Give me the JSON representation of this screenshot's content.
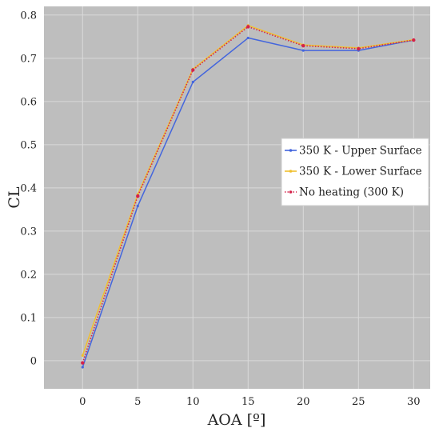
{
  "chart_data": {
    "type": "line",
    "xlabel": "AOA [º]",
    "ylabel": "CL",
    "x": [
      0,
      5,
      10,
      15,
      20,
      25,
      30
    ],
    "xlim": [
      -3.5,
      31.5
    ],
    "ylim": [
      -0.065,
      0.82
    ],
    "xticks": [
      0,
      5,
      10,
      15,
      20,
      25,
      30
    ],
    "yticks": [
      0,
      0.1,
      0.2,
      0.3,
      0.4,
      0.5,
      0.6,
      0.7,
      0.8
    ],
    "grid": true,
    "legend_position": "center-right",
    "plot_background": "#bebebe",
    "grid_color": "#d9d9d9",
    "series": [
      {
        "name": "350 K - Upper Surface",
        "color": "#4466dd",
        "style": "solid",
        "values": [
          -0.015,
          0.358,
          0.645,
          0.747,
          0.718,
          0.718,
          0.742
        ]
      },
      {
        "name": "350 K - Lower Surface",
        "color": "#f0c030",
        "style": "solid",
        "values": [
          0.012,
          0.385,
          0.675,
          0.776,
          0.731,
          0.724,
          0.743
        ]
      },
      {
        "name": "No heating (300 K)",
        "color": "#d4224a",
        "style": "dotted",
        "values": [
          -0.005,
          0.381,
          0.673,
          0.773,
          0.729,
          0.722,
          0.742
        ]
      }
    ]
  }
}
